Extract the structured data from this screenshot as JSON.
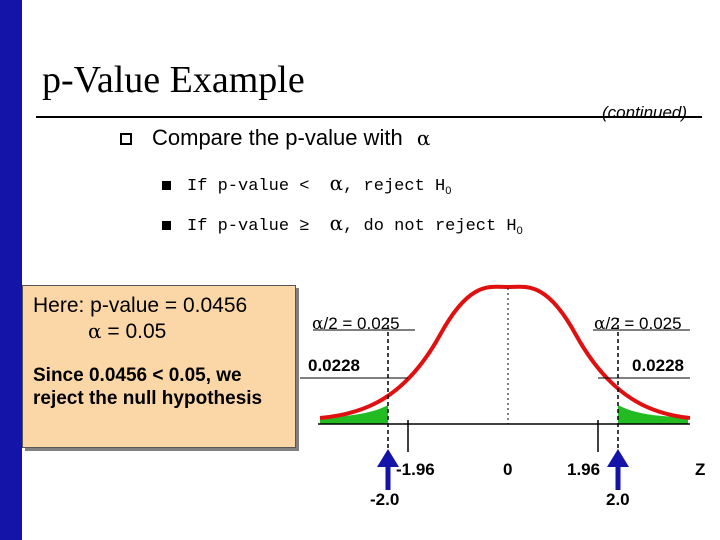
{
  "title": "p-Value Example",
  "continued": "(continued)",
  "bullets": {
    "main": "Compare the p-value with",
    "main_symbol": "α",
    "sub1": {
      "prefix": "If p-value",
      "op": "<",
      "symbol": "α",
      "text": ", reject H",
      "subscript": "0"
    },
    "sub2": {
      "prefix": "If p-value",
      "op": "≥",
      "symbol": "α",
      "text": ", do not reject H",
      "subscript": "0"
    }
  },
  "box": {
    "line1": "Here:  p-value = 0.0456",
    "line2_symbol": "α",
    "line2_text": " = 0.05",
    "line3": "Since 0.0456 < 0.05, we reject the null hypothesis"
  },
  "figure": {
    "left_alpha_symbol": "α",
    "left_alpha_text": "/2 = 0.025",
    "right_alpha_symbol": "α",
    "right_alpha_text": "/2 = 0.025",
    "left_tail_p": "0.0228",
    "right_tail_p": "0.0228",
    "crit_left": "-1.96",
    "crit_right": "1.96",
    "center": "0",
    "axis_label": "Z",
    "stat_left": "-2.0",
    "stat_right": "2.0",
    "colors": {
      "curve": "#e01010",
      "tail_fill": "#22bb22",
      "arrow": "#1414a8",
      "accent": "#1414a8"
    }
  }
}
